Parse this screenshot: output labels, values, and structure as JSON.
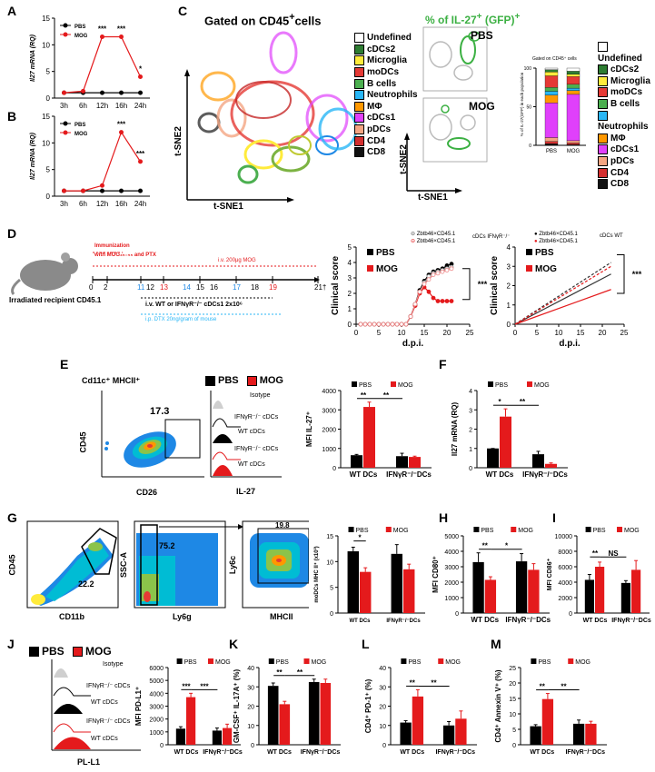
{
  "panel_labels": [
    "A",
    "B",
    "C",
    "D",
    "E",
    "F",
    "G",
    "H",
    "I",
    "J",
    "K",
    "L",
    "M"
  ],
  "colors": {
    "pbs": "#000000",
    "mog": "#e41a1c"
  },
  "panelC": {
    "title_left": "Gated on CD45",
    "title_left_sup": "+",
    "title_left_suffix": "cells",
    "title_mid": "% of IL-27",
    "title_mid_sup": "+",
    "title_mid_suffix": " (GFP)",
    "title_mid_sup2": "+",
    "tsne1": "t-SNE1",
    "tsne2": "t-SNE2",
    "pbs": "PBS",
    "mog": "MOG",
    "legend": [
      {
        "label": "Undefined",
        "color": "#ffffff"
      },
      {
        "label": "cDCs2",
        "color": "#2e7d32"
      },
      {
        "label": "Microglia",
        "color": "#ffeb3b"
      },
      {
        "label": "moDCs",
        "color": "#e53935"
      },
      {
        "label": "B cells",
        "color": "#4caf50"
      },
      {
        "label": "Neutrophils",
        "color": "#29b6f6"
      },
      {
        "label": "MΦ",
        "color": "#ff9800"
      },
      {
        "label": "cDCs1",
        "color": "#e040fb"
      },
      {
        "label": "pDCs",
        "color": "#f4a582"
      },
      {
        "label": "CD4",
        "color": "#d32f2f"
      },
      {
        "label": "CD8",
        "color": "#111111"
      }
    ],
    "bar_title": "Gated on CD45⁺ cells",
    "bar_ylabel": "% of IL-27(GFP) in each population",
    "bar_categories": [
      "PBS",
      "MOG"
    ]
  },
  "panelD": {
    "mouse_label": "Irradiated recipient CD45.1",
    "immunization": "Immunization",
    "immunization_sub": "with MOG₃₅₋₅₅ and PTX",
    "iv_mog": "i.v. 200μg MOG",
    "iv_wt": "i.v. WT or IFNγR⁻/⁻ cDCs1 2x10⁶",
    "ip_dtx": "i.p. DTX 20ng/gram of mouse",
    "timeline_numbers": [
      "0",
      "2",
      "11",
      "12",
      "13",
      "14",
      "15",
      "16",
      "17",
      "18",
      "19",
      "21†"
    ],
    "legend_mid_1": "Zbtb46×CD45.1",
    "legend_mid_2": "Zbtb46×CD45.1",
    "legend_mid_group": "cDCs IFNγR⁻/⁻",
    "legend_right_1": "Zbtb46×CD45.1",
    "legend_right_2": "Zbtb46×CD45.1",
    "legend_right_group": "cDCs WT",
    "ylabel": "Clinical score",
    "xlabel": "d.p.i.",
    "pbs": "PBS",
    "mog": "MOG",
    "sig": "***"
  },
  "panelE": {
    "gate_title": "Cd11c⁺ MHCII⁺",
    "gate_value": "17.3",
    "x_axis": "CD26",
    "y_axis": "CD45",
    "isotype": "Isotype",
    "hist_labels": [
      "IFNγR⁻/⁻ cDCs",
      "WT cDCs",
      "IFNγR⁻/⁻ cDCs",
      "WT cDCs"
    ],
    "hist_x": "IL-27",
    "pbs": "PBS",
    "mog": "MOG"
  },
  "panelG": {
    "g1_value": "22.2",
    "g2_value": "75.2",
    "g3_value": "19.8",
    "cd45": "CD45",
    "cd11b": "CD11b",
    "ssca": "SSC-A",
    "ly6g": "Ly6g",
    "ly6c": "Ly6c",
    "mhcii": "MHCII"
  },
  "panelJ": {
    "isotype": "Isotype",
    "hist_labels": [
      "IFNγR⁻/⁻ cDCs",
      "WT cDCs",
      "IFNγR⁻/⁻ cDCs",
      "WT cDCs"
    ],
    "x_axis": "PL-L1",
    "pbs": "PBS",
    "mog": "MOG"
  },
  "chart_data": [
    {
      "id": "A",
      "type": "line",
      "x": [
        "3h",
        "6h",
        "12h",
        "16h",
        "24h"
      ],
      "ylabel": "Il27 mRNA (RQ)",
      "ylim": [
        0,
        15
      ],
      "yticks": [
        0,
        5,
        10,
        15
      ],
      "series": [
        {
          "name": "PBS",
          "values": [
            1,
            1,
            1,
            1,
            1
          ]
        },
        {
          "name": "MOG",
          "values": [
            1,
            1.3,
            11.5,
            11.5,
            4
          ]
        }
      ],
      "sig": [
        "",
        "",
        "***",
        "***",
        "*"
      ]
    },
    {
      "id": "B",
      "type": "line",
      "x": [
        "3h",
        "6h",
        "12h",
        "16h",
        "24h"
      ],
      "ylabel": "Il27 mRNA (RQ)",
      "ylim": [
        0,
        15
      ],
      "yticks": [
        0,
        5,
        10,
        15
      ],
      "series": [
        {
          "name": "PBS",
          "values": [
            1,
            1,
            1,
            1,
            1
          ]
        },
        {
          "name": "MOG",
          "values": [
            1,
            1,
            2,
            12,
            6.5
          ]
        }
      ],
      "sig": [
        "",
        "",
        "",
        "***",
        "***"
      ]
    },
    {
      "id": "C-bar",
      "type": "bar",
      "categories": [
        "PBS",
        "MOG"
      ],
      "ylim": [
        0,
        100
      ],
      "yticks": [
        0,
        50,
        100
      ],
      "series": [
        {
          "name": "CD8",
          "values": [
            2,
            1
          ]
        },
        {
          "name": "CD4",
          "values": [
            3,
            2
          ]
        },
        {
          "name": "pDCs",
          "values": [
            5,
            3
          ]
        },
        {
          "name": "cDCs1",
          "values": [
            45,
            60
          ]
        },
        {
          "name": "MΦ",
          "values": [
            10,
            5
          ]
        },
        {
          "name": "Neutrophils",
          "values": [
            5,
            3
          ]
        },
        {
          "name": "B cells",
          "values": [
            5,
            5
          ]
        },
        {
          "name": "moDCs",
          "values": [
            15,
            10
          ]
        },
        {
          "name": "Microglia",
          "values": [
            5,
            3
          ]
        },
        {
          "name": "cDCs2",
          "values": [
            3,
            4
          ]
        },
        {
          "name": "Undefined",
          "values": [
            2,
            4
          ]
        }
      ]
    },
    {
      "id": "D-mid",
      "type": "line",
      "xlabel": "d.p.i.",
      "ylabel": "Clinical score",
      "xlim": [
        0,
        25
      ],
      "ylim": [
        0,
        5
      ],
      "xticks": [
        0,
        5,
        10,
        15,
        20,
        25
      ],
      "yticks": [
        0,
        1,
        2,
        3,
        4,
        5
      ],
      "x": [
        1,
        2,
        3,
        4,
        5,
        6,
        7,
        8,
        9,
        10,
        11,
        12,
        13,
        14,
        15,
        16,
        17,
        18,
        19,
        20,
        21
      ],
      "series": [
        {
          "name": "PBS",
          "values": [
            0,
            0,
            0,
            0,
            0,
            0,
            0,
            0,
            0,
            0,
            0,
            0.5,
            1.3,
            2.2,
            2.8,
            3.2,
            3.4,
            3.5,
            3.6,
            3.8,
            3.9
          ]
        },
        {
          "name": "PBS-2",
          "values": [
            0,
            0,
            0,
            0,
            0,
            0,
            0,
            0,
            0,
            0,
            0,
            0.5,
            1.2,
            2.1,
            2.7,
            3.1,
            3.3,
            3.4,
            3.5,
            3.6,
            3.7
          ]
        },
        {
          "name": "MOG",
          "values": [
            0,
            0,
            0,
            0,
            0,
            0,
            0,
            0,
            0,
            0,
            0,
            0.5,
            1.2,
            2.0,
            2.4,
            2.1,
            1.7,
            1.5,
            1.5,
            1.5,
            1.5
          ]
        },
        {
          "name": "MOG-2",
          "values": [
            0,
            0,
            0,
            0,
            0,
            0,
            0,
            0,
            0,
            0,
            0,
            0.5,
            1.3,
            2.1,
            2.6,
            2.9,
            3.2,
            3.3,
            3.4,
            3.5,
            3.6
          ]
        }
      ]
    },
    {
      "id": "D-right",
      "type": "line",
      "xlabel": "d.p.i.",
      "ylabel": "Clinical score",
      "xlim": [
        0,
        25
      ],
      "ylim": [
        0,
        4
      ],
      "xticks": [
        0,
        5,
        10,
        15,
        20,
        25
      ],
      "yticks": [
        0,
        1,
        2,
        3,
        4
      ],
      "series": [
        {
          "name": "PBS",
          "x": [
            0,
            22
          ],
          "values": [
            0,
            2.6
          ]
        },
        {
          "name": "MOG",
          "x": [
            0,
            22
          ],
          "values": [
            0,
            1.8
          ]
        },
        {
          "name": "PBS-dashed",
          "x": [
            0,
            22
          ],
          "values": [
            0,
            3.2
          ]
        },
        {
          "name": "MOG-dashed",
          "x": [
            0,
            22
          ],
          "values": [
            0,
            3.0
          ]
        }
      ]
    },
    {
      "id": "E",
      "type": "bar",
      "categories": [
        "WT DCs",
        "IFNγR⁻/⁻DCs"
      ],
      "ylabel": "MFI IL-27⁺",
      "ylim": [
        0,
        4000
      ],
      "yticks": [
        0,
        1000,
        2000,
        3000,
        4000
      ],
      "series": [
        {
          "name": "PBS",
          "values": [
            650,
            600
          ],
          "err": [
            40,
            150
          ]
        },
        {
          "name": "MOG",
          "values": [
            3150,
            560
          ],
          "err": [
            250,
            40
          ]
        }
      ],
      "sig": [
        "**",
        "**"
      ]
    },
    {
      "id": "F",
      "type": "bar",
      "categories": [
        "WT DCs",
        "IFNγR⁻/⁻DCs"
      ],
      "ylabel": "Il27 mRNA (RQ)",
      "ylim": [
        0,
        4
      ],
      "yticks": [
        0,
        1,
        2,
        3,
        4
      ],
      "series": [
        {
          "name": "PBS",
          "values": [
            1,
            0.7
          ],
          "err": [
            0,
            0.15
          ]
        },
        {
          "name": "MOG",
          "values": [
            2.65,
            0.2
          ],
          "err": [
            0.4,
            0.05
          ]
        }
      ],
      "sig": [
        "*",
        "**"
      ]
    },
    {
      "id": "G",
      "type": "bar",
      "categories": [
        "WT DCs",
        "IFNγR⁻/⁻DCs"
      ],
      "ylabel": "moDCs MHC II⁺ (x10³)",
      "ylim": [
        0,
        15
      ],
      "yticks": [
        0,
        5,
        10,
        15
      ],
      "series": [
        {
          "name": "PBS",
          "values": [
            12,
            11.5
          ],
          "err": [
            0.8,
            1.8
          ]
        },
        {
          "name": "MOG",
          "values": [
            8,
            8.5
          ],
          "err": [
            0.8,
            1.0
          ]
        }
      ],
      "sig": [
        "*",
        ""
      ]
    },
    {
      "id": "H",
      "type": "bar",
      "categories": [
        "WT DCs",
        "IFNγR⁻/⁻DCs"
      ],
      "ylabel": "MFI CD80⁺",
      "ylim": [
        0,
        5000
      ],
      "yticks": [
        0,
        1000,
        2000,
        3000,
        4000,
        5000
      ],
      "series": [
        {
          "name": "PBS",
          "values": [
            3300,
            3350
          ],
          "err": [
            600,
            500
          ]
        },
        {
          "name": "MOG",
          "values": [
            2150,
            2800
          ],
          "err": [
            200,
            400
          ]
        }
      ],
      "sig": [
        "**",
        "*"
      ]
    },
    {
      "id": "I",
      "type": "bar",
      "categories": [
        "WT DCs",
        "IFNγR⁻/⁻DCs"
      ],
      "ylabel": "MFI CD86⁺",
      "ylim": [
        0,
        10000
      ],
      "yticks": [
        0,
        2000,
        4000,
        6000,
        8000,
        10000
      ],
      "series": [
        {
          "name": "PBS",
          "values": [
            4300,
            3900
          ],
          "err": [
            700,
            300
          ]
        },
        {
          "name": "MOG",
          "values": [
            6000,
            5600
          ],
          "err": [
            600,
            1200
          ]
        }
      ],
      "sig": [
        "**",
        "NS"
      ]
    },
    {
      "id": "J",
      "type": "bar",
      "categories": [
        "WT DCs",
        "IFNγR⁻/⁻DCs"
      ],
      "ylabel": "MFI PD-L1⁺",
      "ylim": [
        0,
        6000
      ],
      "yticks": [
        0,
        1000,
        2000,
        3000,
        4000,
        5000,
        6000
      ],
      "series": [
        {
          "name": "PBS",
          "values": [
            1250,
            1100
          ],
          "err": [
            150,
            200
          ]
        },
        {
          "name": "MOG",
          "values": [
            3700,
            1300
          ],
          "err": [
            300,
            300
          ]
        }
      ],
      "sig": [
        "***",
        "***"
      ]
    },
    {
      "id": "K",
      "type": "bar",
      "categories": [
        "WT DCs",
        "IFNγR⁻/⁻DCs"
      ],
      "ylabel": "GM-CSF⁺ IL-17A⁺ (%)",
      "ylim": [
        0,
        40
      ],
      "yticks": [
        0,
        10,
        20,
        30,
        40
      ],
      "series": [
        {
          "name": "PBS",
          "values": [
            30.5,
            32.5
          ],
          "err": [
            1.5,
            1.5
          ]
        },
        {
          "name": "MOG",
          "values": [
            21,
            32
          ],
          "err": [
            1.5,
            2
          ]
        }
      ],
      "sig": [
        "**",
        "**"
      ]
    },
    {
      "id": "L",
      "type": "bar",
      "categories": [
        "WT DCs",
        "IFNγR⁻/⁻DCs"
      ],
      "ylabel": "CD4⁺ PD-1⁺ (%)",
      "ylim": [
        0,
        40
      ],
      "yticks": [
        0,
        10,
        20,
        30,
        40
      ],
      "series": [
        {
          "name": "PBS",
          "values": [
            11.5,
            10
          ],
          "err": [
            1,
            2
          ]
        },
        {
          "name": "MOG",
          "values": [
            25,
            13.5
          ],
          "err": [
            3.5,
            4
          ]
        }
      ],
      "sig": [
        "**",
        "**"
      ]
    },
    {
      "id": "M",
      "type": "bar",
      "categories": [
        "WT DCs",
        "IFNγR⁻/⁻DCs"
      ],
      "ylabel": "CD4⁺ Annexin V⁺ (%)",
      "ylim": [
        0,
        25
      ],
      "yticks": [
        0,
        5,
        10,
        15,
        20,
        25
      ],
      "series": [
        {
          "name": "PBS",
          "values": [
            6,
            6.8
          ],
          "err": [
            0.5,
            1.2
          ]
        },
        {
          "name": "MOG",
          "values": [
            14.8,
            6.8
          ],
          "err": [
            1.8,
            0.8
          ]
        }
      ],
      "sig": [
        "**",
        "**"
      ]
    }
  ]
}
